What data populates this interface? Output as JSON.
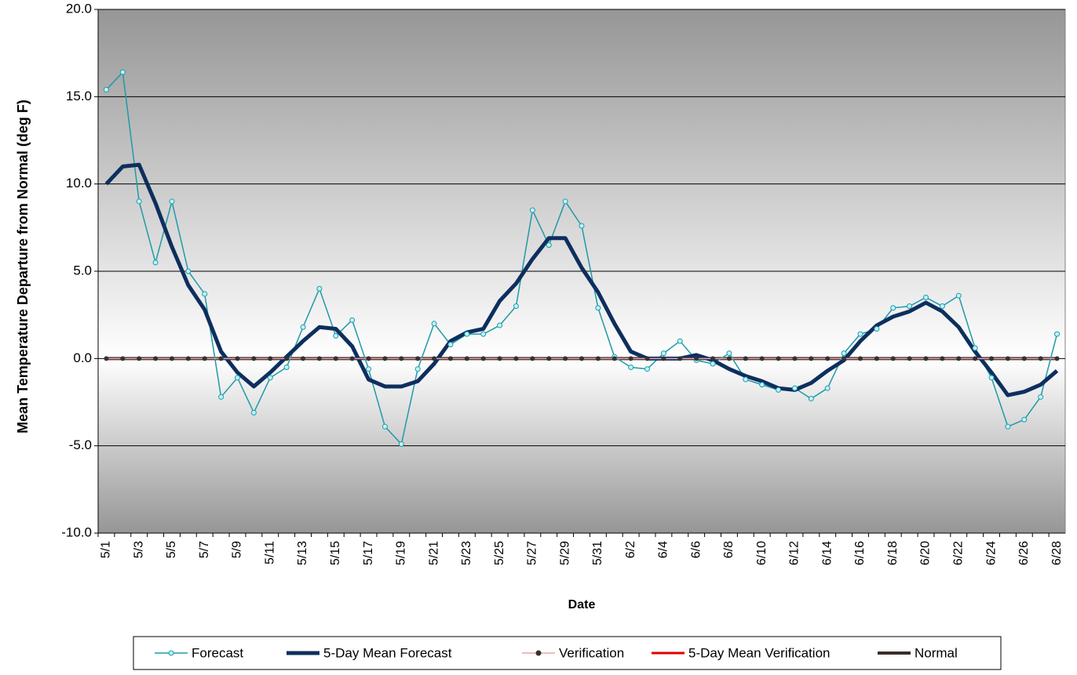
{
  "chart_data": {
    "type": "line",
    "y_label": "Mean Temperature Departure from Normal (deg F)",
    "x_label": "Date",
    "categories": [
      "5/1",
      null,
      "5/3",
      null,
      "5/5",
      null,
      "5/7",
      null,
      "5/9",
      null,
      "5/11",
      null,
      "5/13",
      null,
      "5/15",
      null,
      "5/17",
      null,
      "5/19",
      null,
      "5/21",
      null,
      "5/23",
      null,
      "5/25",
      null,
      "5/27",
      null,
      "5/29",
      null,
      "5/31",
      null,
      "6/2",
      null,
      "6/4",
      null,
      "6/6",
      null,
      "6/8",
      null,
      "6/10",
      null,
      "6/12",
      null,
      "6/14",
      null,
      "6/16",
      null,
      "6/18",
      null,
      "6/20",
      null,
      "6/22",
      null,
      "6/24",
      null,
      "6/26",
      null,
      "6/28"
    ],
    "series": [
      {
        "name": "Forecast",
        "color": "#1f9aa8",
        "marker": "#bff4fb",
        "values": [
          15.4,
          16.4,
          9.0,
          5.5,
          9.0,
          5.0,
          3.7,
          -2.2,
          -1.1,
          -3.1,
          -1.1,
          -0.5,
          1.8,
          4.0,
          1.3,
          2.2,
          -0.6,
          -3.9,
          -4.9,
          -0.6,
          2.0,
          0.8,
          1.4,
          1.4,
          1.9,
          3.0,
          8.5,
          6.5,
          9.0,
          7.6,
          2.9,
          0.1,
          -0.5,
          -0.6,
          0.3,
          1.0,
          -0.1,
          -0.3,
          0.3,
          -1.2,
          -1.5,
          -1.8,
          -1.7,
          -2.3,
          -1.7,
          0.3,
          1.4,
          1.7,
          2.9,
          3.0,
          3.5,
          3.0,
          3.6,
          0.6,
          -1.1,
          -3.9,
          -3.5,
          -2.2,
          1.4
        ]
      },
      {
        "name": "5-Day Mean Forecast",
        "color": "#0d2f5e",
        "values": [
          10.0,
          11.0,
          11.1,
          8.9,
          6.4,
          4.2,
          2.8,
          0.4,
          -0.8,
          -1.6,
          -0.8,
          0.1,
          1.0,
          1.8,
          1.7,
          0.7,
          -1.2,
          -1.6,
          -1.6,
          -1.3,
          -0.3,
          1.0,
          1.5,
          1.7,
          3.3,
          4.3,
          5.7,
          6.9,
          6.9,
          5.2,
          3.8,
          2.0,
          0.4,
          0.0,
          0.0,
          0.0,
          0.2,
          -0.1,
          -0.6,
          -1.0,
          -1.3,
          -1.7,
          -1.8,
          -1.4,
          -0.7,
          -0.1,
          1.0,
          1.9,
          2.4,
          2.7,
          3.2,
          2.7,
          1.8,
          0.4,
          -0.8,
          -2.1,
          -1.9,
          -1.5,
          -0.7
        ]
      },
      {
        "name": "Verification",
        "color": "#f0a0a0",
        "marker": "#333333",
        "values": [
          0,
          0,
          0,
          0,
          0,
          0,
          0,
          0,
          0,
          0,
          0,
          0,
          0,
          0,
          0,
          0,
          0,
          0,
          0,
          0,
          0,
          0,
          0,
          0,
          0,
          0,
          0,
          0,
          0,
          0,
          0,
          0,
          0,
          0,
          0,
          0,
          0,
          0,
          0,
          0,
          0,
          0,
          0,
          0,
          0,
          0,
          0,
          0,
          0,
          0,
          0,
          0,
          0,
          0,
          0,
          0,
          0,
          0,
          0
        ]
      },
      {
        "name": "5-Day Mean Verification",
        "color": "#e00000",
        "values": [
          null,
          null,
          null,
          null,
          null,
          null,
          null,
          null,
          null,
          null,
          null,
          null,
          null,
          null,
          null,
          null,
          null,
          null,
          null,
          null,
          null,
          null,
          null,
          null,
          null,
          null,
          null,
          null,
          null,
          null,
          null,
          null,
          null,
          null,
          null,
          null,
          null,
          null,
          null,
          null,
          null,
          null,
          null,
          null,
          null,
          null,
          null,
          null,
          null,
          null,
          null,
          null,
          null,
          null,
          null,
          null,
          null,
          null,
          null
        ]
      },
      {
        "name": "Normal",
        "color": "#3b2c2c",
        "values": [
          0,
          0,
          0,
          0,
          0,
          0,
          0,
          0,
          0,
          0,
          0,
          0,
          0,
          0,
          0,
          0,
          0,
          0,
          0,
          0,
          0,
          0,
          0,
          0,
          0,
          0,
          0,
          0,
          0,
          0,
          0,
          0,
          0,
          0,
          0,
          0,
          0,
          0,
          0,
          0,
          0,
          0,
          0,
          0,
          0,
          0,
          0,
          0,
          0,
          0,
          0,
          0,
          0,
          0,
          0,
          0,
          0,
          0,
          0
        ]
      }
    ],
    "ylim": [
      -10,
      20
    ],
    "yticks": [
      {
        "value": -10,
        "label": "-10.0"
      },
      {
        "value": -5,
        "label": "-5.0"
      },
      {
        "value": 0,
        "label": "0.0"
      },
      {
        "value": 5,
        "label": "5.0"
      },
      {
        "value": 10,
        "label": "10.0"
      },
      {
        "value": 15,
        "label": "15.0"
      },
      {
        "value": 20,
        "label": "20.0"
      }
    ],
    "grid": true,
    "legend": "bottom"
  }
}
